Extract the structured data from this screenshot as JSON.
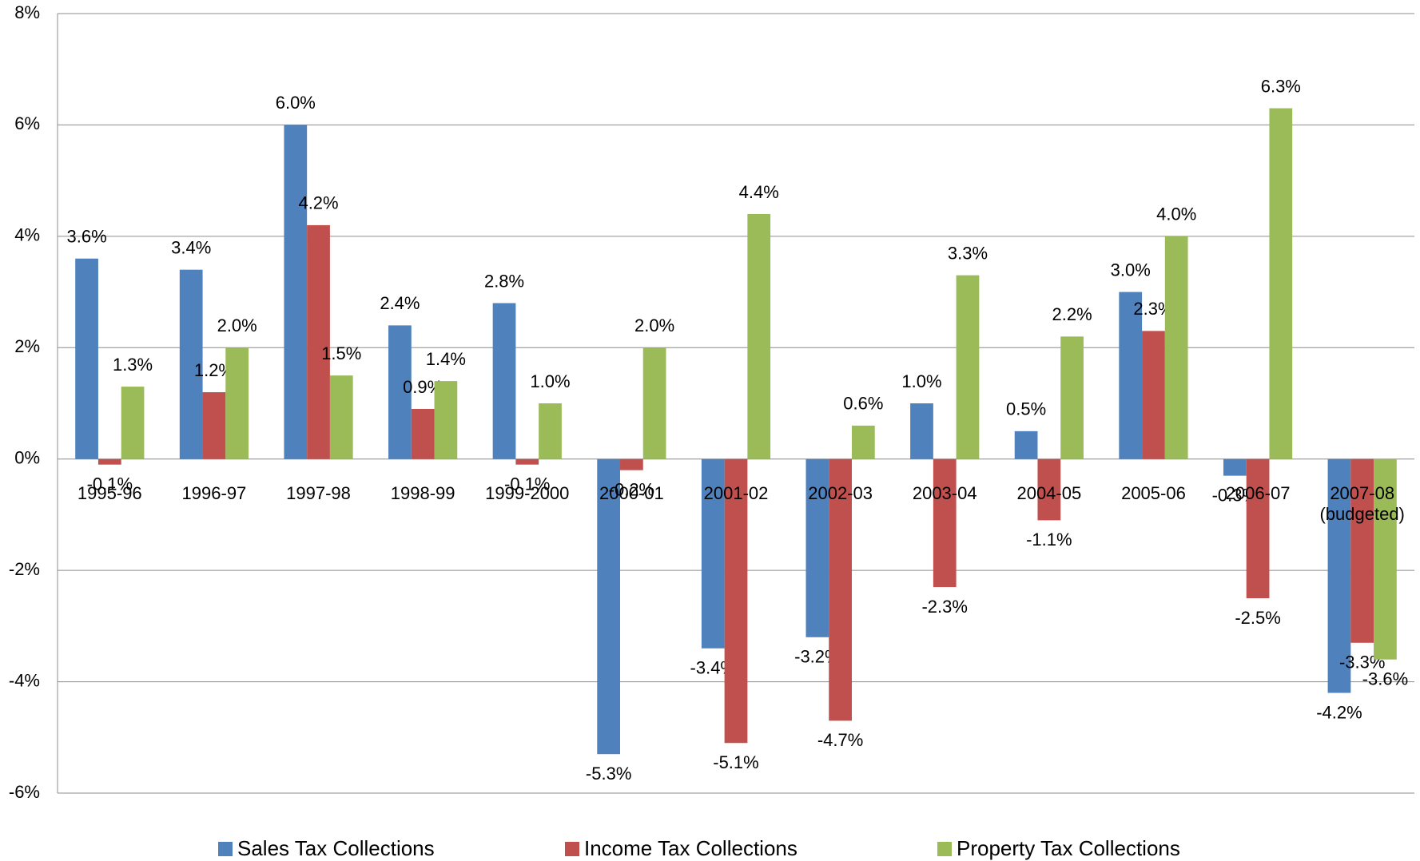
{
  "chart_data": {
    "type": "bar",
    "categories": [
      "1995-96",
      "1996-97",
      "1997-98",
      "1998-99",
      "1999-2000",
      "2000-01",
      "2001-02",
      "2002-03",
      "2003-04",
      "2004-05",
      "2005-06",
      "2006-07",
      "2007-08\n(budgeted)"
    ],
    "series": [
      {
        "name": "Sales Tax Collections",
        "color": "#4f81bd",
        "values": [
          3.6,
          3.4,
          6.0,
          2.4,
          2.8,
          -5.3,
          -3.4,
          -3.2,
          1.0,
          0.5,
          3.0,
          -0.3,
          -4.2
        ],
        "value_labels": [
          "3.6%",
          "3.4%",
          "6.0%",
          "2.4%",
          "2.8%",
          "-5.3%",
          "-3.4%",
          "-3.2%",
          "1.0%",
          "0.5%",
          "3.0%",
          "-0.3%",
          "-4.2%"
        ]
      },
      {
        "name": "Income Tax Collections",
        "color": "#c0504d",
        "values": [
          -0.1,
          1.2,
          4.2,
          0.9,
          -0.1,
          -0.2,
          -5.1,
          -4.7,
          -2.3,
          -1.1,
          2.3,
          -2.5,
          -3.3
        ],
        "value_labels": [
          "-0.1%",
          "1.2%",
          "4.2%",
          "0.9%",
          "-0.1%",
          "-0.2%",
          "-5.1%",
          "-4.7%",
          "-2.3%",
          "-1.1%",
          "2.3%",
          "-2.5%",
          "-3.3%"
        ]
      },
      {
        "name": "Property Tax Collections",
        "color": "#9bbb59",
        "values": [
          1.3,
          2.0,
          1.5,
          1.4,
          1.0,
          2.0,
          4.4,
          0.6,
          3.3,
          2.2,
          4.0,
          6.3,
          -3.6
        ],
        "value_labels": [
          "1.3%",
          "2.0%",
          "1.5%",
          "1.4%",
          "1.0%",
          "2.0%",
          "4.4%",
          "0.6%",
          "3.3%",
          "2.2%",
          "4.0%",
          "6.3%",
          "-3.6%"
        ]
      }
    ],
    "ylim": [
      -6,
      8
    ],
    "yticks": [
      {
        "value": -6,
        "label": "-6%"
      },
      {
        "value": -4,
        "label": "-4%"
      },
      {
        "value": -2,
        "label": "-2%"
      },
      {
        "value": 0,
        "label": "0%"
      },
      {
        "value": 2,
        "label": "2%"
      },
      {
        "value": 4,
        "label": "4%"
      },
      {
        "value": 6,
        "label": "6%"
      },
      {
        "value": 8,
        "label": "8%"
      }
    ],
    "grid": true,
    "legend": "bottom"
  }
}
